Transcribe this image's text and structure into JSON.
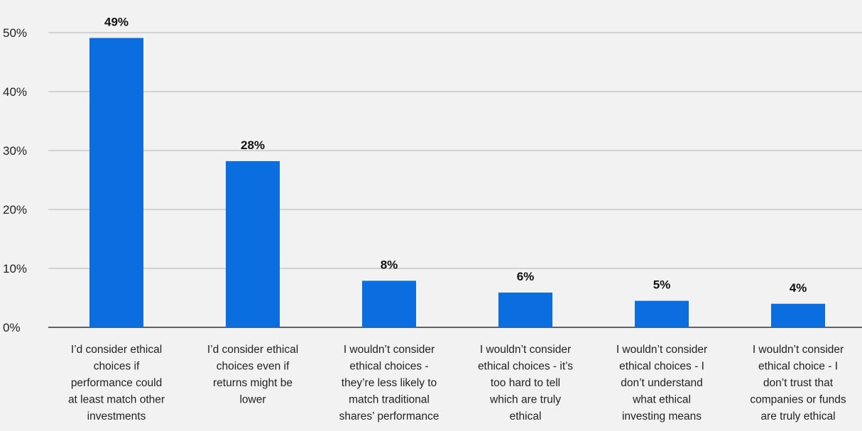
{
  "chart_data": {
    "type": "bar",
    "title": "",
    "xlabel": "",
    "ylabel": "",
    "ylim": [
      0,
      50
    ],
    "yticks": [
      "0%",
      "10%",
      "20%",
      "30%",
      "40%",
      "50%"
    ],
    "ytick_values": [
      0,
      10,
      20,
      30,
      40,
      50
    ],
    "grid": true,
    "legend": "none",
    "categories": [
      "I’d consider ethical choices if performance could at least match other investments",
      "I’d consider ethical choices even if returns might be lower",
      "I wouldn’t consider ethical choices - they’re less likely to match traditional shares’ performance",
      "I wouldn’t consider ethical choices - it’s too hard to tell which are truly ethical",
      "I wouldn’t consider ethical choices - I don’t understand what ethical investing means",
      "I wouldn’t consider ethical choice - I don’t trust that companies or funds are truly ethical"
    ],
    "category_lines": [
      [
        "I’d consider ethical",
        "choices if",
        "performance could",
        "at least match other",
        "investments"
      ],
      [
        "I’d consider ethical",
        "choices even if",
        "returns might be",
        "lower"
      ],
      [
        "I wouldn’t consider",
        "ethical choices -",
        "they’re less likely to",
        "match traditional",
        "shares’ performance"
      ],
      [
        "I wouldn’t consider",
        "ethical choices - it’s",
        "too hard to tell",
        "which are truly",
        "ethical"
      ],
      [
        "I wouldn’t consider",
        "ethical choices - I",
        "don’t understand",
        "what ethical",
        "investing means"
      ],
      [
        "I wouldn’t consider",
        "ethical choice - I",
        "don’t trust that",
        "companies or funds",
        "are truly ethical"
      ]
    ],
    "values": [
      49.1,
      28.2,
      7.9,
      5.9,
      4.5,
      4.0
    ],
    "data_labels": [
      "49%",
      "28%",
      "8%",
      "6%",
      "5%",
      "4%"
    ],
    "colors": {
      "bar": "#0a6ee0",
      "grid": "#c8c8c8",
      "axis": "#333333",
      "background": "#f2f2f2"
    }
  }
}
